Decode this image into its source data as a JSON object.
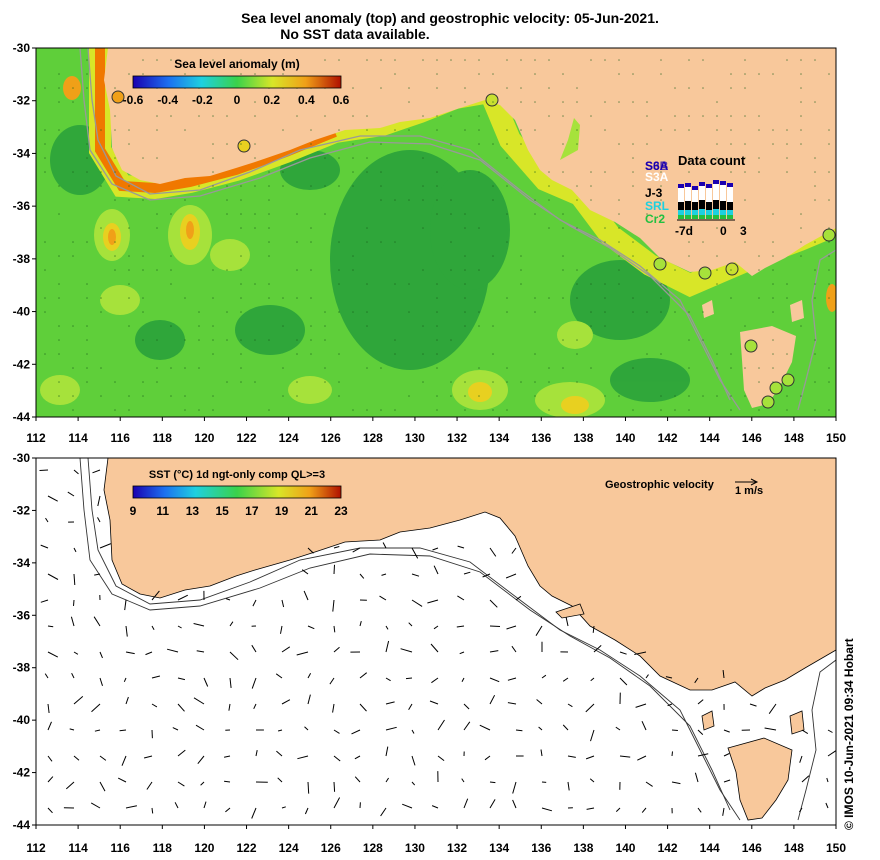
{
  "header": {
    "title": "Sea level anomaly (top) and geostrophic velocity: 05-Jun-2021.",
    "subtitle": "No SST data available."
  },
  "axes": {
    "x_ticks": [
      "112",
      "114",
      "116",
      "118",
      "120",
      "122",
      "124",
      "126",
      "128",
      "130",
      "132",
      "134",
      "136",
      "138",
      "140",
      "142",
      "144",
      "146",
      "148",
      "150"
    ],
    "y_ticks": [
      "-30",
      "-32",
      "-34",
      "-36",
      "-38",
      "-40",
      "-42",
      "-44"
    ]
  },
  "top_panel": {
    "colorbar_title": "Sea level anomaly (m)",
    "colorbar_ticks": [
      "-0.6",
      "-0.4",
      "-0.2",
      "0",
      "0.2",
      "0.4",
      "0.6"
    ]
  },
  "data_count": {
    "title": "Data count",
    "satellites": [
      "S3B",
      "S3A",
      "J-3",
      "SRL",
      "Cr2"
    ],
    "overlap_labels": [
      "S6A",
      "S3B"
    ],
    "x_labels": [
      "-7d",
      "0",
      "3"
    ]
  },
  "bottom_panel": {
    "colorbar_title": "SST (°C) 1d ngt-only comp QL>=3",
    "colorbar_ticks": [
      "9",
      "11",
      "13",
      "15",
      "17",
      "19",
      "21",
      "23"
    ],
    "velocity_label": "Geostrophic velocity",
    "velocity_scale": "1 m/s"
  },
  "credit": "© IMOS 10-Jun-2021 09:34 Hobart",
  "colors": {
    "land": "#f8c89b",
    "sla_background": "#5fcf3a",
    "sla_dark": "#2da43a",
    "sla_light": "#a6e23b",
    "coast_warm": "#f07800",
    "tide_gauge": "#ffd84a"
  }
}
